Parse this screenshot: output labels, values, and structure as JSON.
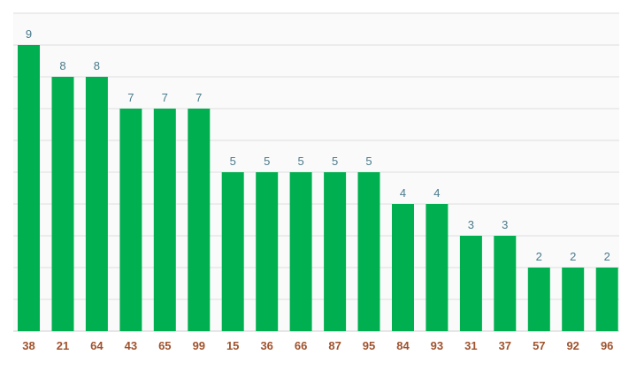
{
  "chart_data": {
    "type": "bar",
    "categories": [
      "38",
      "21",
      "64",
      "43",
      "65",
      "99",
      "15",
      "36",
      "66",
      "87",
      "95",
      "84",
      "93",
      "31",
      "37",
      "57",
      "92",
      "96"
    ],
    "values": [
      9,
      8,
      8,
      7,
      7,
      7,
      5,
      5,
      5,
      5,
      5,
      4,
      4,
      3,
      3,
      2,
      2,
      2
    ],
    "ylim": [
      0,
      9
    ],
    "grid": true,
    "legend": "none",
    "colors": {
      "bar": "#00b050",
      "plot_background": "#fafafa",
      "gridline": "#dddddd",
      "data_label": "#4a7a8c",
      "tick_label": "#a0522d"
    }
  }
}
